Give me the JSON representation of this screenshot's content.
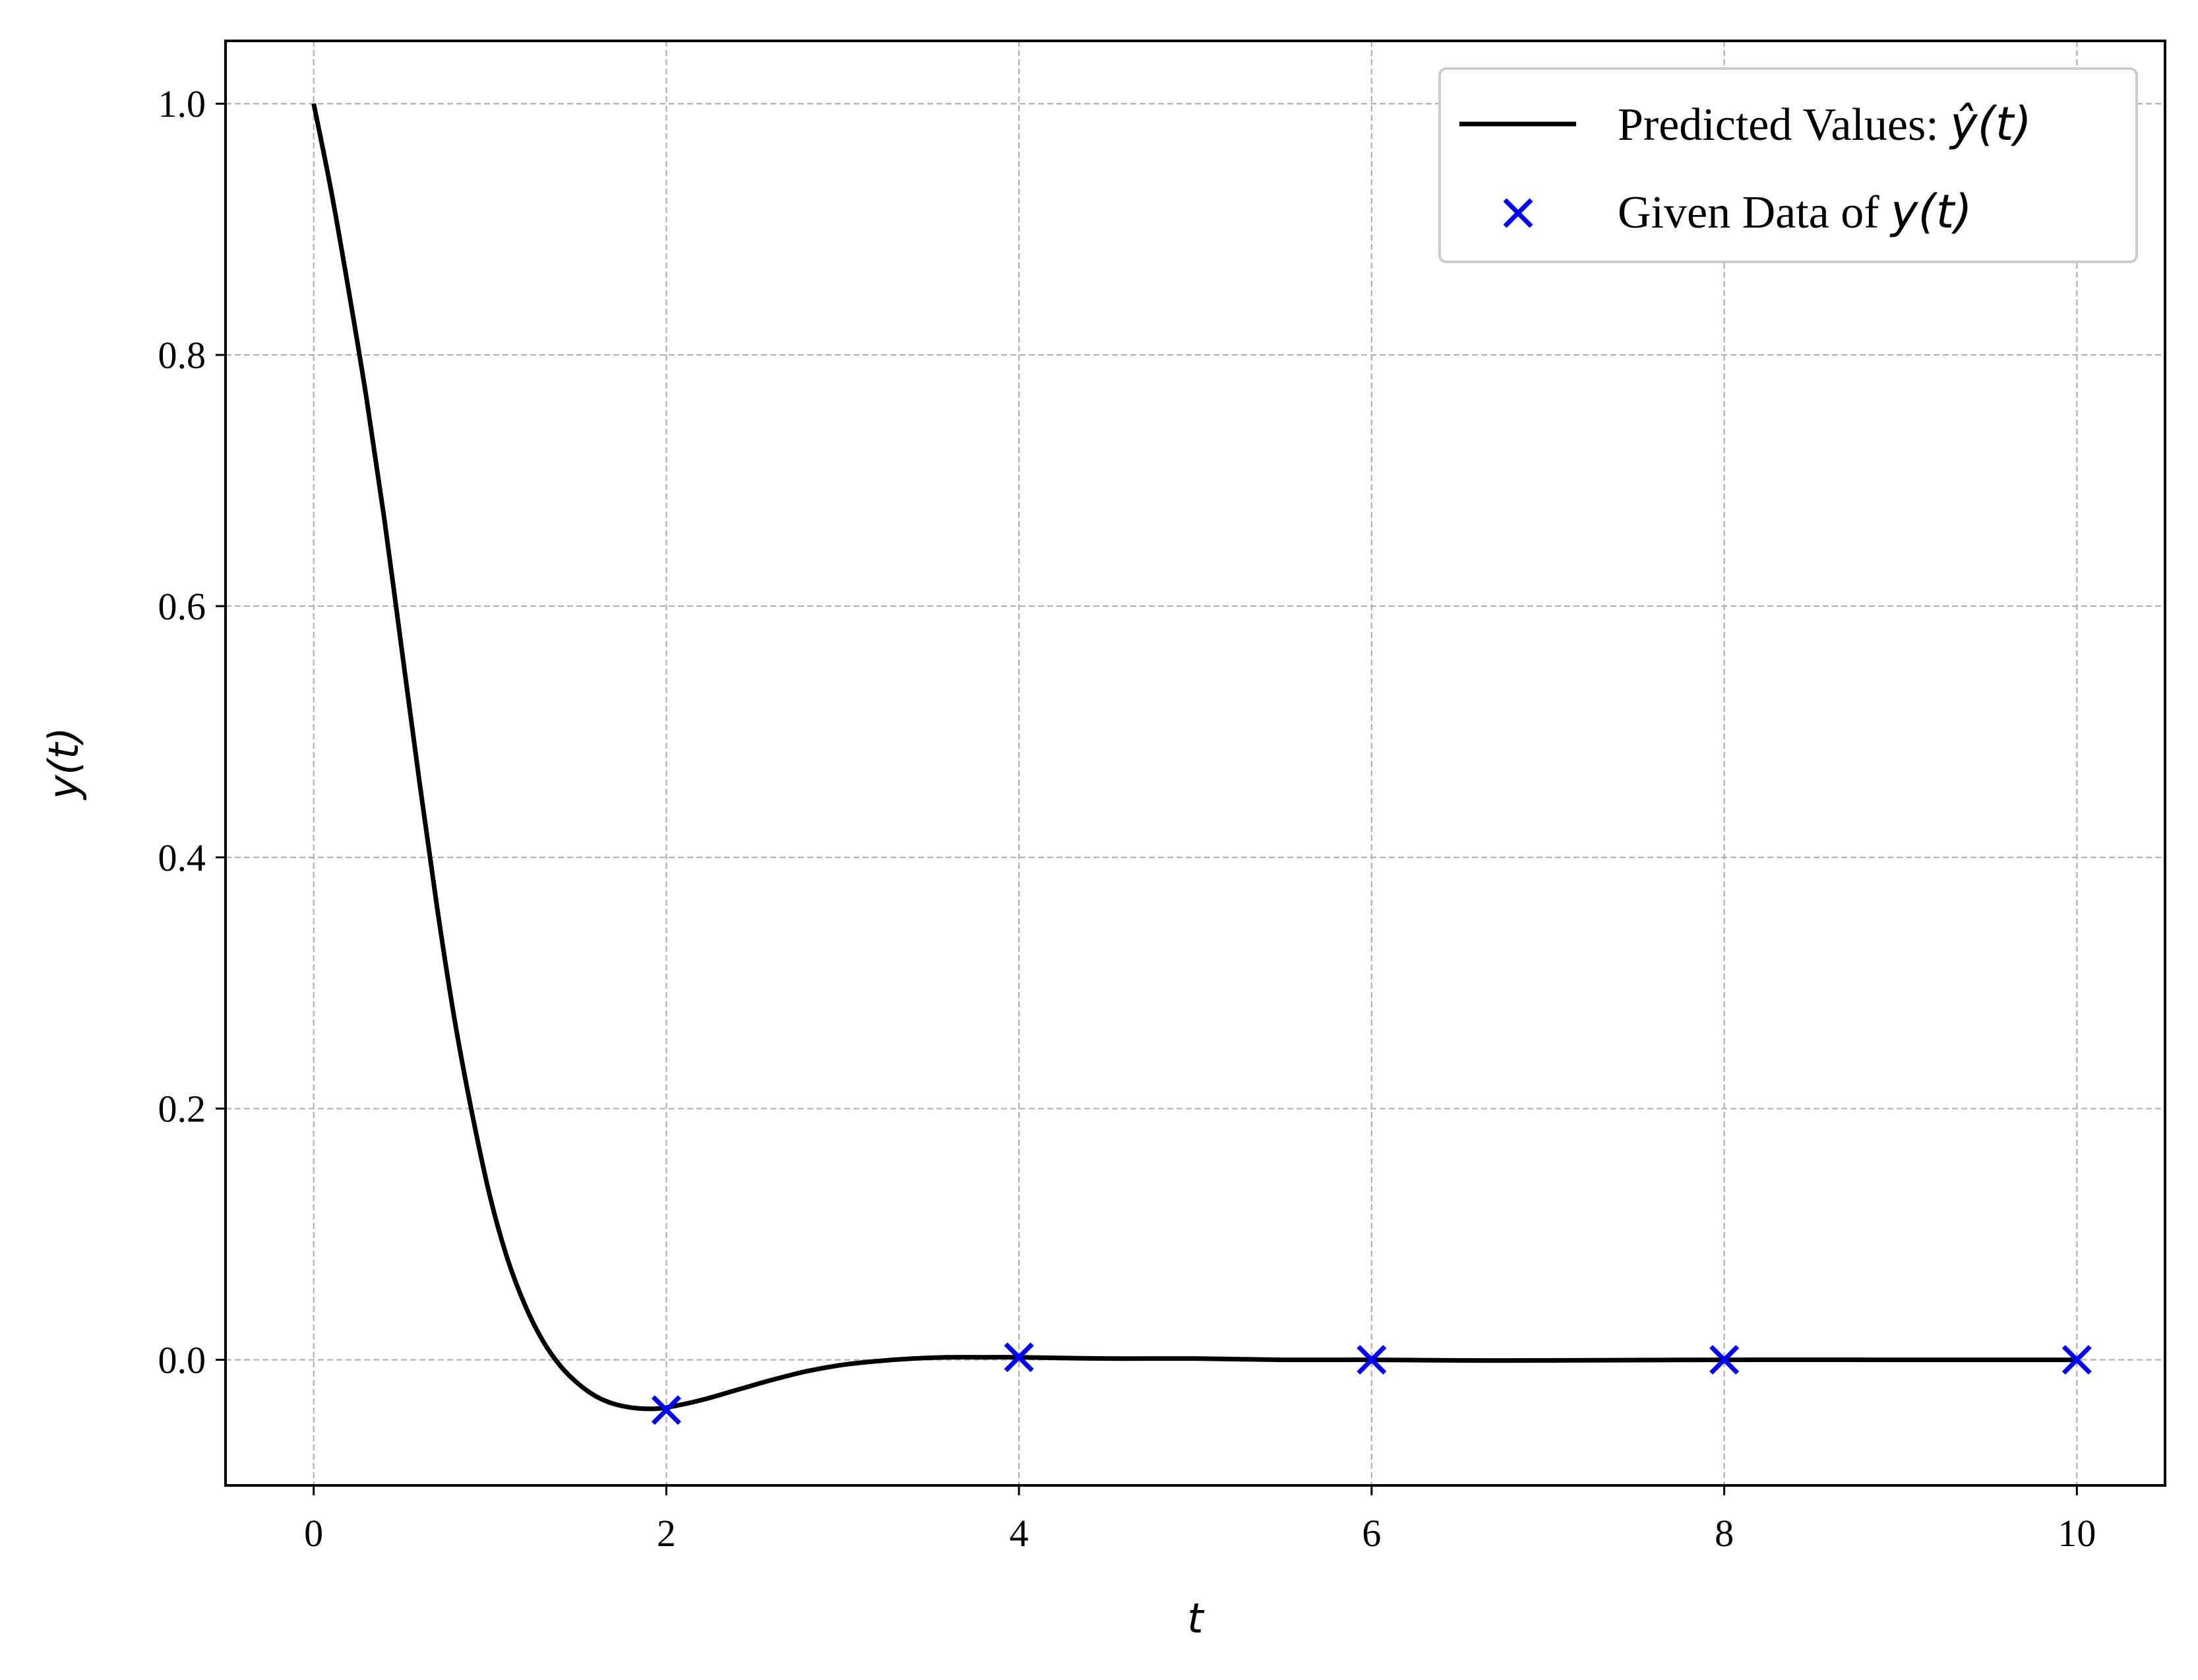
{
  "chart_data": {
    "type": "line",
    "xlabel": "t",
    "ylabel": "y(t)",
    "xlim": [
      -0.5,
      10.5
    ],
    "ylim": [
      -0.1,
      1.05
    ],
    "xticks": [
      0,
      2,
      4,
      6,
      8,
      10
    ],
    "xtick_labels": [
      "0",
      "2",
      "4",
      "6",
      "8",
      "10"
    ],
    "yticks": [
      0.0,
      0.2,
      0.4,
      0.6,
      0.8,
      1.0
    ],
    "ytick_labels": [
      "0.0",
      "0.2",
      "0.4",
      "0.6",
      "0.8",
      "1.0"
    ],
    "grid": true,
    "legend_position": "top-right",
    "series": [
      {
        "name": "Predicted Values: ŷ(t)",
        "legend_text": "Predicted Values: ",
        "legend_math": "ŷ(t)",
        "kind": "line",
        "color": "#000000",
        "x": [
          0,
          0.1,
          0.2,
          0.3,
          0.4,
          0.5,
          0.6,
          0.7,
          0.8,
          0.9,
          1.0,
          1.1,
          1.2,
          1.3,
          1.4,
          1.5,
          1.6,
          1.7,
          1.8,
          1.9,
          2.0,
          2.2,
          2.4,
          2.6,
          2.8,
          3.0,
          3.2,
          3.4,
          3.6,
          3.8,
          4.0,
          4.5,
          5.0,
          5.5,
          6.0,
          6.5,
          7.0,
          8.0,
          9.0,
          10.0
        ],
        "y": [
          1.0,
          0.93,
          0.85,
          0.765,
          0.67,
          0.565,
          0.46,
          0.36,
          0.27,
          0.195,
          0.13,
          0.08,
          0.043,
          0.015,
          -0.005,
          -0.019,
          -0.029,
          -0.035,
          -0.038,
          -0.039,
          -0.038,
          -0.032,
          -0.024,
          -0.016,
          -0.009,
          -0.004,
          -0.001,
          0.001,
          0.002,
          0.002,
          0.002,
          0.001,
          0.001,
          0.0,
          0.0,
          -0.0005,
          -0.0005,
          0.0,
          0.0,
          0.0
        ]
      },
      {
        "name": "Given Data of y(t)",
        "legend_text": "Given Data of ",
        "legend_math": "y(t)",
        "kind": "scatter",
        "marker": "x",
        "color": "#0000ff",
        "x": [
          2,
          4,
          6,
          8,
          10
        ],
        "y": [
          -0.04,
          0.002,
          0.0,
          0.0,
          0.0
        ]
      }
    ]
  }
}
